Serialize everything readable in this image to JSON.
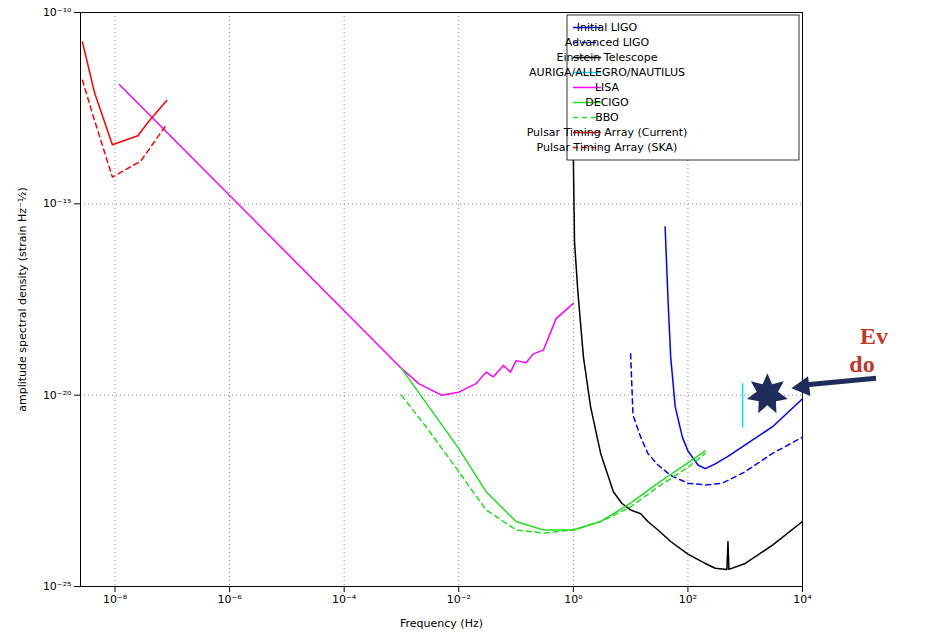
{
  "chart_data": {
    "type": "line",
    "x_label": "Frequency (Hz)",
    "y_label": "amplitude spectral density (strain Hz⁻½)",
    "log": true,
    "grid": true,
    "legend": "top-right",
    "xlim": [
      2.5e-09,
      10000
    ],
    "ylim": [
      1e-25,
      1e-10
    ],
    "xticks": [
      {
        "value": 1e-08,
        "label": "10⁻⁸"
      },
      {
        "value": 1e-06,
        "label": "10⁻⁶"
      },
      {
        "value": 0.0001,
        "label": "10⁻⁴"
      },
      {
        "value": 0.01,
        "label": "10⁻²"
      },
      {
        "value": 1,
        "label": "10⁰"
      },
      {
        "value": 100,
        "label": "10²"
      },
      {
        "value": 10000,
        "label": "10⁴"
      }
    ],
    "yticks": [
      {
        "value": 1e-25,
        "label": "10⁻²⁵"
      },
      {
        "value": 1e-20,
        "label": "10⁻²⁰"
      },
      {
        "value": 1e-15,
        "label": "10⁻¹⁵"
      },
      {
        "value": 1e-10,
        "label": "10⁻¹⁰"
      }
    ],
    "annotation": [
      "Ev",
      "do"
    ],
    "series": [
      {
        "name": "Initial LIGO",
        "color": "#0000ff",
        "line_style": "solid",
        "x": [
          40,
          45,
          50,
          60,
          80,
          100,
          150,
          200,
          300,
          500,
          1000,
          3000,
          10000
        ],
        "values": [
          2.5e-16,
          3e-18,
          1e-19,
          5e-21,
          8e-22,
          3.5e-22,
          1.5e-22,
          1.2e-22,
          1.6e-22,
          2.5e-22,
          5e-22,
          1.5e-21,
          8e-21
        ]
      },
      {
        "name": "Advanced LIGO",
        "color": "#0000ff",
        "line_style": "dashed",
        "x": [
          10,
          11,
          15,
          20,
          30,
          50,
          100,
          200,
          400,
          1000,
          3000,
          10000
        ],
        "values": [
          1.2e-19,
          3e-21,
          8e-22,
          3e-22,
          1.5e-22,
          8e-23,
          5e-23,
          4.5e-23,
          5e-23,
          1e-22,
          3e-22,
          8e-22
        ]
      },
      {
        "name": "Einstein Telescope",
        "color": "#000000",
        "line_style": "solid",
        "x": [
          1,
          1.05,
          1.2,
          1.5,
          2,
          3,
          5,
          7,
          10,
          15,
          20,
          30,
          50,
          100,
          200,
          300,
          480,
          500,
          520,
          1000,
          3000,
          10000
        ],
        "values": [
          1.8e-14,
          1e-16,
          5e-18,
          1e-19,
          5e-21,
          3e-22,
          3e-23,
          1.5e-23,
          1e-23,
          8e-24,
          5e-24,
          3e-24,
          1.5e-24,
          7e-25,
          4e-25,
          3e-25,
          2.8e-25,
          1.5e-24,
          2.8e-25,
          4e-25,
          1.2e-24,
          5e-24
        ]
      },
      {
        "name": "AURIGA/ALLEGRO/NAUTILUS",
        "color": "#00e5ff",
        "line_style": "solid",
        "x": [
          900,
          900
        ],
        "values": [
          2e-20,
          1.5e-21
        ]
      },
      {
        "name": "LISA",
        "color": "#ff00ff",
        "line_style": "solid",
        "x": [
          1.2e-08,
          0.001,
          0.002,
          0.005,
          0.01,
          0.02,
          0.03,
          0.04,
          0.06,
          0.08,
          0.1,
          0.15,
          0.2,
          0.3,
          0.5,
          1
        ],
        "values": [
          1.3e-12,
          5e-20,
          2e-20,
          1e-20,
          1.2e-20,
          2e-20,
          4e-20,
          3e-20,
          6e-20,
          4e-20,
          8e-20,
          7e-20,
          1.2e-19,
          1.5e-19,
          1e-18,
          2.5e-18
        ]
      },
      {
        "name": "DECIGO",
        "color": "#22dd22",
        "line_style": "solid",
        "x": [
          0.001,
          0.003,
          0.01,
          0.03,
          0.1,
          0.3,
          1,
          3,
          10,
          30,
          100,
          200
        ],
        "values": [
          5e-20,
          5e-21,
          4e-22,
          3e-23,
          5e-24,
          3e-24,
          3e-24,
          5e-24,
          1.5e-23,
          5e-23,
          1.7e-22,
          3.5e-22
        ]
      },
      {
        "name": "BBO",
        "color": "#22dd22",
        "line_style": "dashed",
        "x": [
          0.001,
          0.003,
          0.01,
          0.03,
          0.1,
          0.3,
          1,
          3,
          10,
          30,
          100,
          200
        ],
        "values": [
          1e-20,
          1.2e-21,
          1e-22,
          1e-23,
          3e-24,
          2.5e-24,
          3e-24,
          5e-24,
          1.2e-23,
          4e-23,
          1.3e-22,
          3e-22
        ]
      },
      {
        "name": "Pulsar Timing Array (Current)",
        "color": "#ff0000",
        "line_style": "solid",
        "x": [
          2.7e-09,
          4.4e-09,
          9e-09,
          2.5e-08,
          4e-08,
          8e-08
        ],
        "values": [
          1.7e-11,
          8e-13,
          3.5e-14,
          6e-14,
          1.5e-13,
          5e-13
        ]
      },
      {
        "name": "Pulsar Timing Array (SKA)",
        "color": "#ff0000",
        "line_style": "dashed",
        "x": [
          2.7e-09,
          4.4e-09,
          9e-09,
          2.8e-08,
          8e-08
        ],
        "values": [
          1.7e-12,
          1.5e-13,
          5e-15,
          1.3e-14,
          1.2e-13
        ]
      }
    ]
  }
}
